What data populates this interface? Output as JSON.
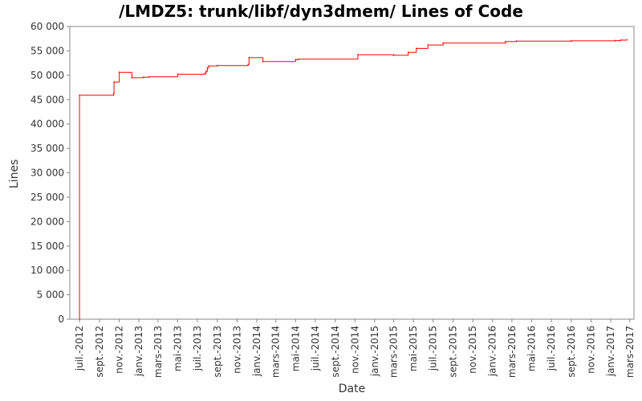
{
  "chart_data": {
    "type": "line",
    "title": "/LMDZ5: trunk/libf/dyn3dmem/ Lines of Code",
    "xlabel": "Date",
    "ylabel": "Lines",
    "ylim": [
      0,
      60000
    ],
    "xlim": [
      "2012-06-01",
      "2017-03-14"
    ],
    "grid": false,
    "legend": "none",
    "y_ticks": [
      "0",
      "5 000",
      "10 000",
      "15 000",
      "20 000",
      "25 000",
      "30 000",
      "35 000",
      "40 000",
      "45 000",
      "50 000",
      "55 000",
      "60 000"
    ],
    "x_ticks": [
      {
        "date": "2012-07-01",
        "label": "juil.-2012"
      },
      {
        "date": "2012-09-01",
        "label": "sept.-2012"
      },
      {
        "date": "2012-11-01",
        "label": "nov.-2012"
      },
      {
        "date": "2013-01-01",
        "label": "janv.-2013"
      },
      {
        "date": "2013-03-01",
        "label": "mars-2013"
      },
      {
        "date": "2013-05-01",
        "label": "mai-2013"
      },
      {
        "date": "2013-07-01",
        "label": "juil.-2013"
      },
      {
        "date": "2013-09-01",
        "label": "sept.-2013"
      },
      {
        "date": "2013-11-01",
        "label": "nov.-2013"
      },
      {
        "date": "2014-01-01",
        "label": "janv.-2014"
      },
      {
        "date": "2014-03-01",
        "label": "mars-2014"
      },
      {
        "date": "2014-05-01",
        "label": "mai-2014"
      },
      {
        "date": "2014-07-01",
        "label": "juil.-2014"
      },
      {
        "date": "2014-09-01",
        "label": "sept.-2014"
      },
      {
        "date": "2014-11-01",
        "label": "nov.-2014"
      },
      {
        "date": "2015-01-01",
        "label": "janv.-2015"
      },
      {
        "date": "2015-03-01",
        "label": "mars-2015"
      },
      {
        "date": "2015-05-01",
        "label": "mai-2015"
      },
      {
        "date": "2015-07-01",
        "label": "juil.-2015"
      },
      {
        "date": "2015-09-01",
        "label": "sept.-2015"
      },
      {
        "date": "2015-11-01",
        "label": "nov.-2015"
      },
      {
        "date": "2016-01-01",
        "label": "janv.-2016"
      },
      {
        "date": "2016-03-01",
        "label": "mars-2016"
      },
      {
        "date": "2016-05-01",
        "label": "mai-2016"
      },
      {
        "date": "2016-07-01",
        "label": "juil.-2016"
      },
      {
        "date": "2016-09-01",
        "label": "sept.-2016"
      },
      {
        "date": "2016-11-01",
        "label": "nov.-2016"
      },
      {
        "date": "2017-01-01",
        "label": "janv.-2017"
      },
      {
        "date": "2017-03-01",
        "label": "mars-2017"
      }
    ],
    "series": [
      {
        "color": "#ff0000",
        "points": [
          {
            "date": "2012-07-01",
            "y": 0
          },
          {
            "date": "2012-07-01",
            "y": 45900
          },
          {
            "date": "2012-10-15",
            "y": 46200
          },
          {
            "date": "2012-10-16",
            "y": 48600
          },
          {
            "date": "2012-11-01",
            "y": 50600
          },
          {
            "date": "2012-12-10",
            "y": 49500
          },
          {
            "date": "2013-01-15",
            "y": 49600
          },
          {
            "date": "2013-02-01",
            "y": 49700
          },
          {
            "date": "2013-05-01",
            "y": 50200
          },
          {
            "date": "2013-07-25",
            "y": 50400
          },
          {
            "date": "2013-07-28",
            "y": 50800
          },
          {
            "date": "2013-08-01",
            "y": 51500
          },
          {
            "date": "2013-08-05",
            "y": 51900
          },
          {
            "date": "2013-09-01",
            "y": 52000
          },
          {
            "date": "2013-12-05",
            "y": 52200
          },
          {
            "date": "2013-12-08",
            "y": 53600
          },
          {
            "date": "2014-01-20",
            "y": 52800
          },
          {
            "date": "2014-05-01",
            "y": 53200
          },
          {
            "date": "2014-05-10",
            "y": 53300
          },
          {
            "date": "2014-11-10",
            "y": 54200
          },
          {
            "date": "2015-03-01",
            "y": 54100
          },
          {
            "date": "2015-04-15",
            "y": 54700
          },
          {
            "date": "2015-05-10",
            "y": 55500
          },
          {
            "date": "2015-06-15",
            "y": 56200
          },
          {
            "date": "2015-08-01",
            "y": 56600
          },
          {
            "date": "2016-02-10",
            "y": 56900
          },
          {
            "date": "2016-03-15",
            "y": 57000
          },
          {
            "date": "2016-09-01",
            "y": 57050
          },
          {
            "date": "2017-01-15",
            "y": 57100
          },
          {
            "date": "2017-02-01",
            "y": 57200
          },
          {
            "date": "2017-02-20",
            "y": 57300
          }
        ]
      }
    ]
  }
}
